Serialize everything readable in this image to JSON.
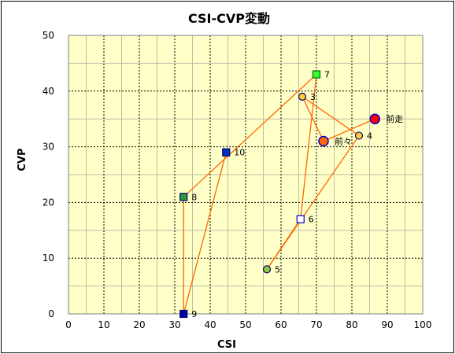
{
  "chart_data": {
    "type": "scatter",
    "title": "CSI-CVP変動",
    "xlabel": "CSI",
    "ylabel": "CVP",
    "xlim": [
      0,
      100
    ],
    "ylim": [
      0,
      50
    ],
    "xticks": [
      0,
      10,
      20,
      30,
      40,
      50,
      60,
      70,
      80,
      90,
      100
    ],
    "yticks": [
      0,
      10,
      20,
      30,
      40,
      50
    ],
    "major_grid_x": true,
    "major_grid_y": true,
    "minor_grid": true,
    "legend": "none",
    "plot_background": "#FFFFC8",
    "line_color": "#FF6600",
    "points": [
      {
        "label": "前走",
        "x": 86.5,
        "y": 35,
        "marker": "circle-large",
        "fill": "#FF0000",
        "stroke": "#0000CC"
      },
      {
        "label": "前々",
        "x": 72,
        "y": 31,
        "marker": "circle-large",
        "fill": "#FF6600",
        "stroke": "#0000CC"
      },
      {
        "label": "3",
        "x": 66,
        "y": 39,
        "marker": "circle",
        "fill": "#FFCC33",
        "stroke": "#000080"
      },
      {
        "label": "4",
        "x": 82,
        "y": 32,
        "marker": "circle",
        "fill": "#FFCC33",
        "stroke": "#000080"
      },
      {
        "label": "5",
        "x": 56,
        "y": 8,
        "marker": "circle",
        "fill": "#99CC33",
        "stroke": "#000080"
      },
      {
        "label": "6",
        "x": 65.5,
        "y": 17,
        "marker": "square",
        "fill": "#FFFFFF",
        "stroke": "#0000CC"
      },
      {
        "label": "7",
        "x": 70,
        "y": 43,
        "marker": "square",
        "fill": "#33FF33",
        "stroke": "#006600"
      },
      {
        "label": "8",
        "x": 32.5,
        "y": 21,
        "marker": "square",
        "fill": "#339933",
        "stroke": "#000080"
      },
      {
        "label": "9",
        "x": 32.5,
        "y": 0,
        "marker": "square",
        "fill": "#0000AA",
        "stroke": "#000066"
      },
      {
        "label": "10",
        "x": 44.5,
        "y": 29,
        "marker": "square",
        "fill": "#0033CC",
        "stroke": "#000066"
      }
    ]
  }
}
